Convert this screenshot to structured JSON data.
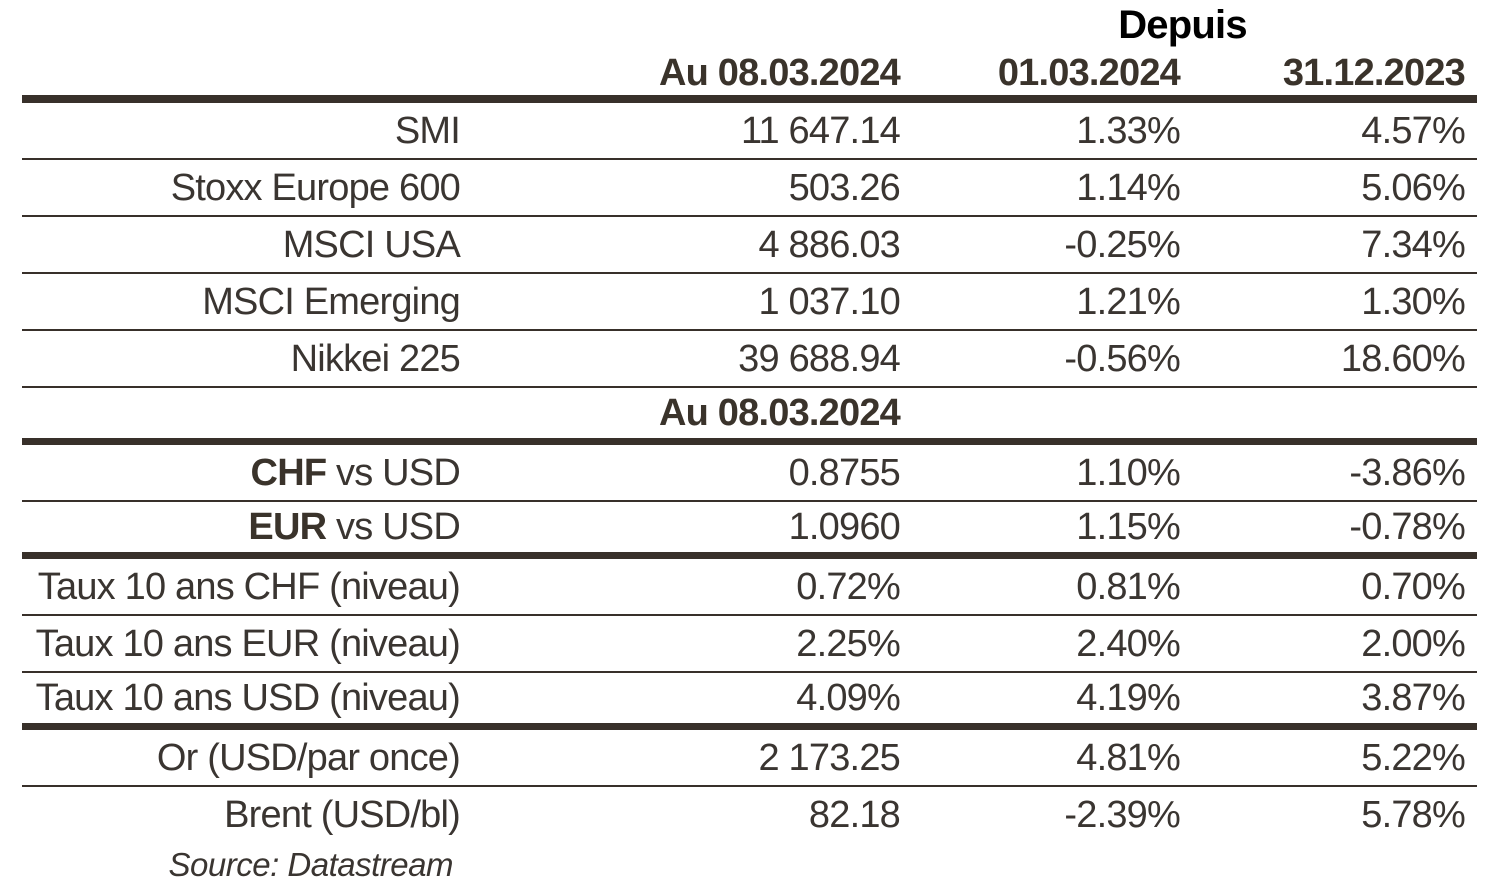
{
  "page": {
    "depuis_label": "Depuis",
    "columns": {
      "current": "Au 08.03.2024",
      "since_0103": "01.03.2024",
      "since_3112": "31.12.2023"
    },
    "section2_header": "Au 08.03.2024",
    "source_note": "Source: Datastream",
    "colors": {
      "body_text": "#3a3531",
      "header_text": "#3a332b",
      "depuis_text": "#000000",
      "rule": "#38302a",
      "background": "#ffffff"
    },
    "rows": [
      {
        "label": "SMI",
        "current": "11 647.14",
        "since_0103": "1.33%",
        "since_3112": "4.57%"
      },
      {
        "label": "Stoxx Europe 600",
        "current": "503.26",
        "since_0103": "1.14%",
        "since_3112": "5.06%"
      },
      {
        "label": "MSCI USA",
        "current": "4 886.03",
        "since_0103": "-0.25%",
        "since_3112": "7.34%"
      },
      {
        "label": "MSCI Emerging",
        "current": "1 037.10",
        "since_0103": "1.21%",
        "since_3112": "1.30%"
      },
      {
        "label": "Nikkei 225",
        "current": "39 688.94",
        "since_0103": "-0.56%",
        "since_3112": "18.60%"
      },
      {
        "label_bold": "CHF",
        "label_rest": " vs USD",
        "current": "0.8755",
        "since_0103": "1.10%",
        "since_3112": "-3.86%"
      },
      {
        "label_bold": "EUR",
        "label_rest": " vs USD",
        "current": "1.0960",
        "since_0103": "1.15%",
        "since_3112": "-0.78%"
      },
      {
        "label": "Taux 10 ans CHF (niveau)",
        "current": "0.72%",
        "since_0103": "0.81%",
        "since_3112": "0.70%"
      },
      {
        "label": "Taux 10 ans EUR (niveau)",
        "current": "2.25%",
        "since_0103": "2.40%",
        "since_3112": "2.00%"
      },
      {
        "label": "Taux 10 ans USD (niveau)",
        "current": "4.09%",
        "since_0103": "4.19%",
        "since_3112": "3.87%"
      },
      {
        "label": "Or (USD/par once)",
        "current": "2 173.25",
        "since_0103": "4.81%",
        "since_3112": "5.22%"
      },
      {
        "label": "Brent (USD/bl)",
        "current": "82.18",
        "since_0103": "-2.39%",
        "since_3112": "5.78%"
      }
    ]
  }
}
